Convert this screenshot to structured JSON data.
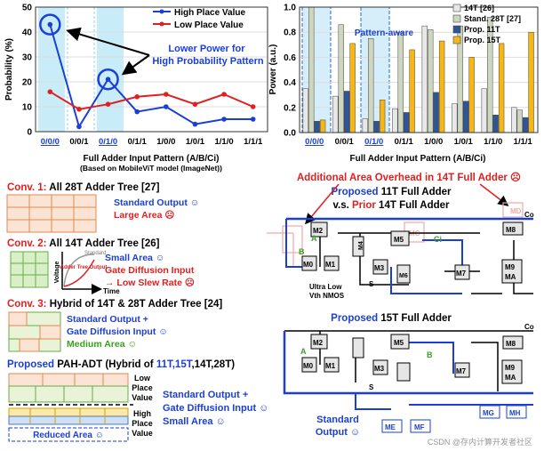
{
  "chart_data": [
    {
      "type": "line",
      "categories": [
        "0/0/0",
        "0/0/1",
        "0/1/0",
        "0/1/1",
        "1/0/0",
        "1/0/1",
        "1/1/0",
        "1/1/1"
      ],
      "series": [
        {
          "name": "High Place Value",
          "color": "#1a3fd8",
          "values": [
            43,
            2,
            21,
            8,
            10,
            3,
            5,
            5
          ]
        },
        {
          "name": "Low Place Value",
          "color": "#e02020",
          "values": [
            16,
            9,
            11,
            14,
            15,
            11,
            15,
            10
          ]
        }
      ],
      "ylabel": "Probability (%)",
      "xlabel": "Full Adder Input Pattern (A/B/Ci)",
      "ylim": [
        0,
        50
      ],
      "yticks": [
        "0",
        "10",
        "20",
        "30",
        "40",
        "50"
      ],
      "annotation": "Lower Power for High Probability Pattern",
      "note": "(Based on MobileViT model (ImageNet))",
      "highlight": [
        "0/0/0",
        "0/1/0"
      ]
    },
    {
      "type": "bar",
      "categories": [
        "0/0/0",
        "0/0/1",
        "0/1/0",
        "0/1/1",
        "1/0/0",
        "1/0/1",
        "1/1/0",
        "1/1/1"
      ],
      "series": [
        {
          "name": "14T [26]",
          "color": "#e8e8e8",
          "values": [
            0.35,
            0.29,
            0.11,
            0.19,
            0.85,
            0.23,
            0.35,
            0.2
          ]
        },
        {
          "name": "Stand. 28T [27]",
          "color": "#cfd6c0",
          "values": [
            1.0,
            0.86,
            0.75,
            0.8,
            0.82,
            0.85,
            0.92,
            0.18
          ]
        },
        {
          "name": "Prop. 11T",
          "color": "#2f5597",
          "values": [
            0.09,
            0.33,
            0.09,
            0.16,
            0.32,
            0.25,
            0.14,
            0.12
          ]
        },
        {
          "name": "Prop. 15T",
          "color": "#f6b616",
          "values": [
            0.1,
            0.71,
            0.26,
            0.66,
            0.73,
            0.6,
            0.71,
            0.8
          ]
        }
      ],
      "ylabel": "Power (a.u.)",
      "xlabel": "Full Adder Input Pattern (A/B/Ci)",
      "ylim": [
        0,
        1.0
      ],
      "yticks": [
        "0.0",
        "0.2",
        "0.4",
        "0.6",
        "0.8",
        "1.0"
      ],
      "annotation": "Pattern-aware",
      "highlight": [
        "0/0/0",
        "0/1/0"
      ]
    }
  ],
  "conv1": {
    "title_a": "Conv. 1:",
    "title_b": " All 28T Adder Tree [27]",
    "line1": "Standard Output ☺",
    "line2": "Large Area ☹"
  },
  "conv2": {
    "title_a": "Conv. 2:",
    "title_b": " All 14T Adder Tree [26]",
    "line1": "Small Area ☺",
    "line2": "Gate Diffusion Input",
    "line3": "→ Low Slew Rate ☹",
    "graph_ylabel": "Voltage",
    "graph_xlabel": "Time",
    "graph_tag": "Standard",
    "graph_curve": "Adder Tree Output"
  },
  "conv3": {
    "title_a": "Conv. 3:",
    "title_b": " Hybrid of 14T & 28T Adder Tree [24]",
    "line1": "Standard Output +",
    "line2": "Gate Diffusion Input ☺",
    "line3": "Medium Area ☺"
  },
  "proposed": {
    "title_a": "Proposed",
    "title_b": " PAH-ADT (Hybrid of ",
    "title_c": "11T,15T",
    "title_d": ",14T,28T)",
    "low_label": "Low Place Value",
    "high_label": "High Place Value",
    "line1": "Standard Output +",
    "line2": "Gate Diffusion Input ☺",
    "line3": "Small Area ☺",
    "reduced": "Reduced Area ☺"
  },
  "circuit": {
    "overhead": "Additional Area Overhead in 14T Full Adder ☹",
    "title11_a": "Proposed",
    "title11_b": " 11T Full Adder",
    "compare_a": "v.s. ",
    "compare_b": "Prior",
    "compare_c": " 14T Full Adder",
    "title15_a": "Proposed",
    "title15_b": " 15T Full Adder",
    "nmos_note": "Ultra Low Vth NMOS",
    "std_out": "Standard Output ☺",
    "labels": {
      "co": "Co",
      "a": "A",
      "b": "B",
      "ci": "Ci",
      "s": "S"
    },
    "transistors": [
      "M0",
      "M1",
      "M2",
      "M3",
      "M4",
      "M5",
      "M6",
      "M7",
      "M8",
      "M9",
      "MA",
      "MB",
      "MC",
      "MD",
      "ME",
      "MF",
      "MG",
      "MH"
    ]
  },
  "watermark": "CSDN @存内计算开发者社区"
}
